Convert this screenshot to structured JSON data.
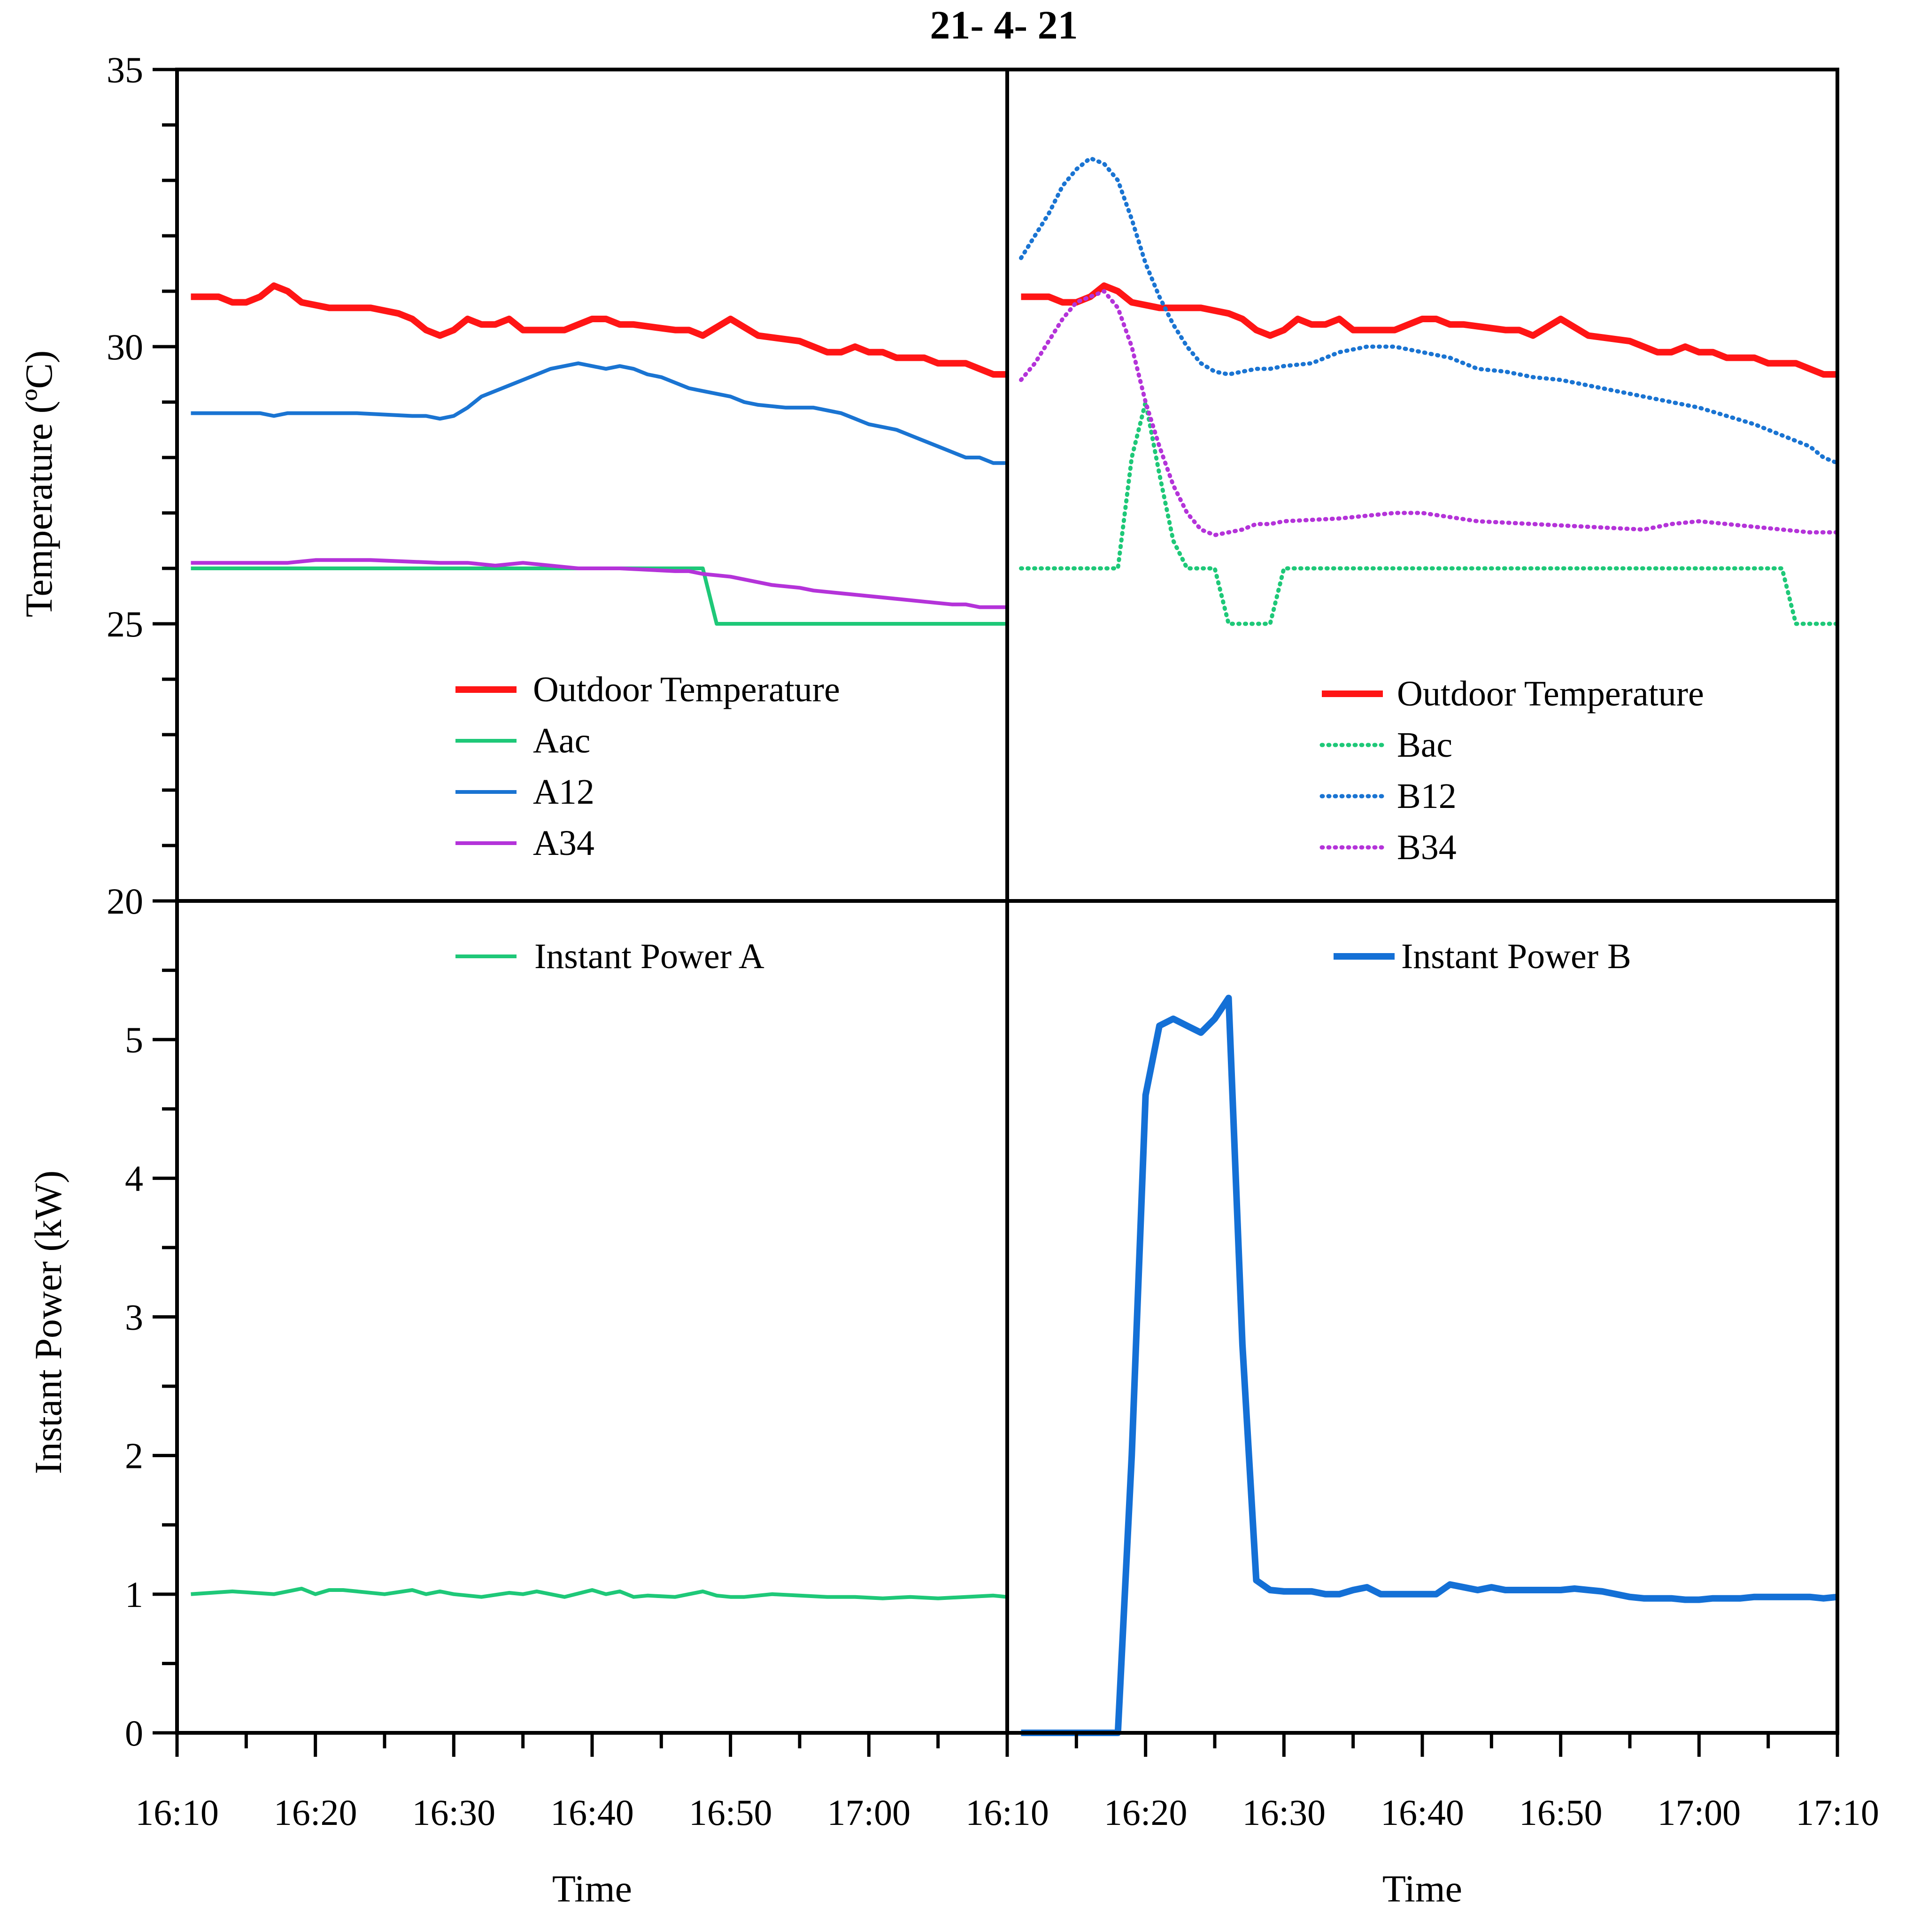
{
  "title": "21- 4- 21",
  "colors": {
    "outdoor": "#ff1515",
    "aac": "#1ec878",
    "a12": "#1a74d2",
    "a34": "#b433d9",
    "power_b": "#1470d6",
    "axis": "#000000"
  },
  "axes": {
    "temperature_label": "Temperature (ºC)",
    "power_label": "Instant Power (kW)",
    "left_time_label": "Time",
    "right_time_label": "Time",
    "temperature_ticks": [
      "20",
      "25",
      "30",
      "35"
    ],
    "power_ticks": [
      "0",
      "1",
      "2",
      "3",
      "4",
      "5"
    ],
    "left_time_ticks": [
      "16:10",
      "16:20",
      "16:30",
      "16:40",
      "16:50",
      "17:00"
    ],
    "right_time_ticks": [
      "16:10",
      "16:20",
      "16:30",
      "16:40",
      "16:50",
      "17:00",
      "17:10"
    ]
  },
  "legends": {
    "top_left": [
      "Outdoor Temperature",
      "Aac",
      "A12",
      "A34"
    ],
    "top_right": [
      "Outdoor Temperature",
      "Bac",
      "B12",
      "B34"
    ],
    "bottom_left": [
      "Instant Power A"
    ],
    "bottom_right": [
      "Instant Power B"
    ]
  },
  "chart_data": [
    {
      "type": "line",
      "panel": "top-left",
      "x_unit": "minutes after 16:10",
      "xlim": [
        0,
        60
      ],
      "ylim": [
        20,
        35
      ],
      "ylabel": "Temperature (ºC)",
      "series": [
        {
          "name": "Outdoor Temperature",
          "style": "solid",
          "x": [
            1,
            3,
            4,
            5,
            6,
            7,
            8,
            9,
            11,
            14,
            16,
            17,
            18,
            19,
            20,
            21,
            22,
            23,
            24,
            25,
            26,
            27,
            28,
            30,
            31,
            32,
            33,
            36,
            37,
            38,
            40,
            42,
            45,
            46,
            47,
            48,
            49,
            50,
            51,
            52,
            53,
            54,
            55,
            56,
            57,
            58,
            59,
            60
          ],
          "y": [
            30.9,
            30.9,
            30.8,
            30.8,
            30.9,
            31.1,
            31.0,
            30.8,
            30.7,
            30.7,
            30.6,
            30.5,
            30.3,
            30.2,
            30.3,
            30.5,
            30.4,
            30.4,
            30.5,
            30.3,
            30.3,
            30.3,
            30.3,
            30.5,
            30.5,
            30.4,
            30.4,
            30.3,
            30.3,
            30.2,
            30.5,
            30.2,
            30.1,
            30.0,
            29.9,
            29.9,
            30.0,
            29.9,
            29.9,
            29.8,
            29.8,
            29.8,
            29.7,
            29.7,
            29.7,
            29.6,
            29.5,
            29.5
          ]
        },
        {
          "name": "Aac",
          "style": "solid",
          "x": [
            1,
            38,
            39,
            60
          ],
          "y": [
            26,
            26,
            25,
            25
          ]
        },
        {
          "name": "A12",
          "style": "solid",
          "x": [
            1,
            6,
            7,
            8,
            10,
            13,
            17,
            18,
            19,
            20,
            21,
            22,
            23,
            24,
            25,
            27,
            29,
            30,
            31,
            32,
            33,
            34,
            35,
            36,
            37,
            38,
            39,
            40,
            41,
            42,
            44,
            46,
            48,
            49,
            50,
            52,
            53,
            54,
            55,
            56,
            57,
            58,
            59,
            60
          ],
          "y": [
            28.8,
            28.8,
            28.75,
            28.8,
            28.8,
            28.8,
            28.75,
            28.75,
            28.7,
            28.75,
            28.9,
            29.1,
            29.2,
            29.3,
            29.4,
            29.6,
            29.7,
            29.65,
            29.6,
            29.65,
            29.6,
            29.5,
            29.45,
            29.35,
            29.25,
            29.2,
            29.15,
            29.1,
            29.0,
            28.95,
            28.9,
            28.9,
            28.8,
            28.7,
            28.6,
            28.5,
            28.4,
            28.3,
            28.2,
            28.1,
            28.0,
            28.0,
            27.9,
            27.9
          ]
        },
        {
          "name": "A34",
          "style": "solid",
          "x": [
            1,
            8,
            10,
            14,
            19,
            21,
            23,
            25,
            29,
            32,
            36,
            37,
            38,
            40,
            41,
            43,
            45,
            46,
            48,
            50,
            52,
            54,
            56,
            57,
            58,
            60
          ],
          "y": [
            26.1,
            26.1,
            26.15,
            26.15,
            26.1,
            26.1,
            26.05,
            26.1,
            26.0,
            26.0,
            25.95,
            25.95,
            25.9,
            25.85,
            25.8,
            25.7,
            25.65,
            25.6,
            25.55,
            25.5,
            25.45,
            25.4,
            25.35,
            25.35,
            25.3,
            25.3
          ]
        }
      ]
    },
    {
      "type": "line",
      "panel": "top-right",
      "x_unit": "minutes after 16:10",
      "xlim": [
        0,
        60
      ],
      "ylim": [
        20,
        35
      ],
      "series": [
        {
          "name": "Outdoor Temperature",
          "style": "solid",
          "x": [
            1,
            3,
            4,
            5,
            6,
            7,
            8,
            9,
            11,
            14,
            16,
            17,
            18,
            19,
            20,
            21,
            22,
            23,
            24,
            25,
            26,
            27,
            28,
            30,
            31,
            32,
            33,
            36,
            37,
            38,
            40,
            42,
            45,
            46,
            47,
            48,
            49,
            50,
            51,
            52,
            53,
            54,
            55,
            56,
            57,
            58,
            59,
            60
          ],
          "y": [
            30.9,
            30.9,
            30.8,
            30.8,
            30.9,
            31.1,
            31.0,
            30.8,
            30.7,
            30.7,
            30.6,
            30.5,
            30.3,
            30.2,
            30.3,
            30.5,
            30.4,
            30.4,
            30.5,
            30.3,
            30.3,
            30.3,
            30.3,
            30.5,
            30.5,
            30.4,
            30.4,
            30.3,
            30.3,
            30.2,
            30.5,
            30.2,
            30.1,
            30.0,
            29.9,
            29.9,
            30.0,
            29.9,
            29.9,
            29.8,
            29.8,
            29.8,
            29.7,
            29.7,
            29.7,
            29.6,
            29.5,
            29.5
          ]
        },
        {
          "name": "Bac",
          "style": "dotted",
          "x": [
            1,
            8,
            9,
            10,
            11,
            12,
            13,
            15,
            16,
            17,
            19,
            20,
            56,
            57,
            60
          ],
          "y": [
            26,
            26,
            28,
            29,
            27.7,
            26.5,
            26,
            26,
            25,
            25,
            25,
            26,
            26,
            25,
            25
          ]
        },
        {
          "name": "B12",
          "style": "dotted",
          "x": [
            1,
            2,
            3,
            4,
            5,
            6,
            7,
            8,
            9,
            10,
            11,
            12,
            13,
            14,
            15,
            16,
            17,
            18,
            19,
            20,
            22,
            24,
            26,
            28,
            30,
            32,
            34,
            36,
            38,
            40,
            42,
            44,
            46,
            48,
            50,
            52,
            54,
            56,
            58,
            59,
            60
          ],
          "y": [
            31.6,
            32.0,
            32.4,
            32.9,
            33.2,
            33.4,
            33.3,
            33.0,
            32.3,
            31.5,
            30.9,
            30.4,
            30.0,
            29.7,
            29.55,
            29.5,
            29.55,
            29.6,
            29.6,
            29.65,
            29.7,
            29.9,
            30.0,
            30.0,
            29.9,
            29.8,
            29.6,
            29.55,
            29.45,
            29.4,
            29.3,
            29.2,
            29.1,
            29.0,
            28.9,
            28.75,
            28.6,
            28.4,
            28.2,
            28.0,
            27.9
          ]
        },
        {
          "name": "B34",
          "style": "dotted",
          "x": [
            1,
            2,
            3,
            4,
            5,
            6,
            7,
            8,
            9,
            10,
            11,
            12,
            13,
            14,
            15,
            16,
            17,
            18,
            19,
            20,
            24,
            28,
            30,
            34,
            38,
            42,
            46,
            48,
            50,
            52,
            54,
            56,
            58,
            60
          ],
          "y": [
            29.4,
            29.7,
            30.1,
            30.5,
            30.8,
            30.9,
            31.0,
            30.7,
            30.0,
            29.0,
            28.2,
            27.5,
            27.0,
            26.7,
            26.6,
            26.65,
            26.7,
            26.8,
            26.8,
            26.85,
            26.9,
            27.0,
            27.0,
            26.85,
            26.8,
            26.75,
            26.7,
            26.8,
            26.85,
            26.8,
            26.75,
            26.7,
            26.65,
            26.65
          ]
        }
      ]
    },
    {
      "type": "line",
      "panel": "bottom-left",
      "x_unit": "minutes after 16:10",
      "xlim": [
        0,
        60
      ],
      "ylim": [
        0,
        6
      ],
      "ylabel": "Instant Power (kW)",
      "xlabel": "Time",
      "series": [
        {
          "name": "Instant Power A",
          "style": "solid",
          "x": [
            1,
            4,
            7,
            9,
            10,
            11,
            12,
            13,
            15,
            17,
            18,
            19,
            20,
            22,
            24,
            25,
            26,
            28,
            30,
            31,
            32,
            33,
            34,
            36,
            38,
            39,
            40,
            41,
            43,
            45,
            47,
            49,
            51,
            53,
            55,
            57,
            59,
            60
          ],
          "y": [
            1.0,
            1.02,
            1.0,
            1.04,
            1.0,
            1.03,
            1.03,
            1.02,
            1.0,
            1.03,
            1.0,
            1.02,
            1.0,
            0.98,
            1.01,
            1.0,
            1.02,
            0.98,
            1.03,
            1.0,
            1.02,
            0.98,
            0.99,
            0.98,
            1.02,
            0.99,
            0.98,
            0.98,
            1.0,
            0.99,
            0.98,
            0.98,
            0.97,
            0.98,
            0.97,
            0.98,
            0.99,
            0.98
          ]
        }
      ]
    },
    {
      "type": "line",
      "panel": "bottom-right",
      "x_unit": "minutes after 16:10",
      "xlim": [
        0,
        60
      ],
      "ylim": [
        0,
        6
      ],
      "xlabel": "Time",
      "series": [
        {
          "name": "Instant Power B",
          "style": "solid",
          "x": [
            1,
            8,
            9,
            10,
            11,
            12,
            13,
            14,
            15,
            16,
            17,
            18,
            19,
            20,
            21,
            22,
            23,
            24,
            25,
            26,
            27,
            28,
            29,
            30,
            31,
            32,
            33,
            34,
            35,
            36,
            37,
            38,
            39,
            40,
            41,
            42,
            43,
            44,
            45,
            46,
            47,
            48,
            49,
            50,
            51,
            52,
            53,
            54,
            55,
            56,
            57,
            58,
            59,
            60
          ],
          "y": [
            0,
            0,
            2.0,
            4.6,
            5.1,
            5.15,
            5.1,
            5.05,
            5.15,
            5.3,
            2.8,
            1.1,
            1.03,
            1.02,
            1.02,
            1.02,
            1.0,
            1.0,
            1.03,
            1.05,
            1.0,
            1.0,
            1.0,
            1.0,
            1.0,
            1.07,
            1.05,
            1.03,
            1.05,
            1.03,
            1.03,
            1.03,
            1.03,
            1.03,
            1.04,
            1.03,
            1.02,
            1.0,
            0.98,
            0.97,
            0.97,
            0.97,
            0.96,
            0.96,
            0.97,
            0.97,
            0.97,
            0.98,
            0.98,
            0.98,
            0.98,
            0.98,
            0.97,
            0.98
          ]
        }
      ]
    }
  ]
}
